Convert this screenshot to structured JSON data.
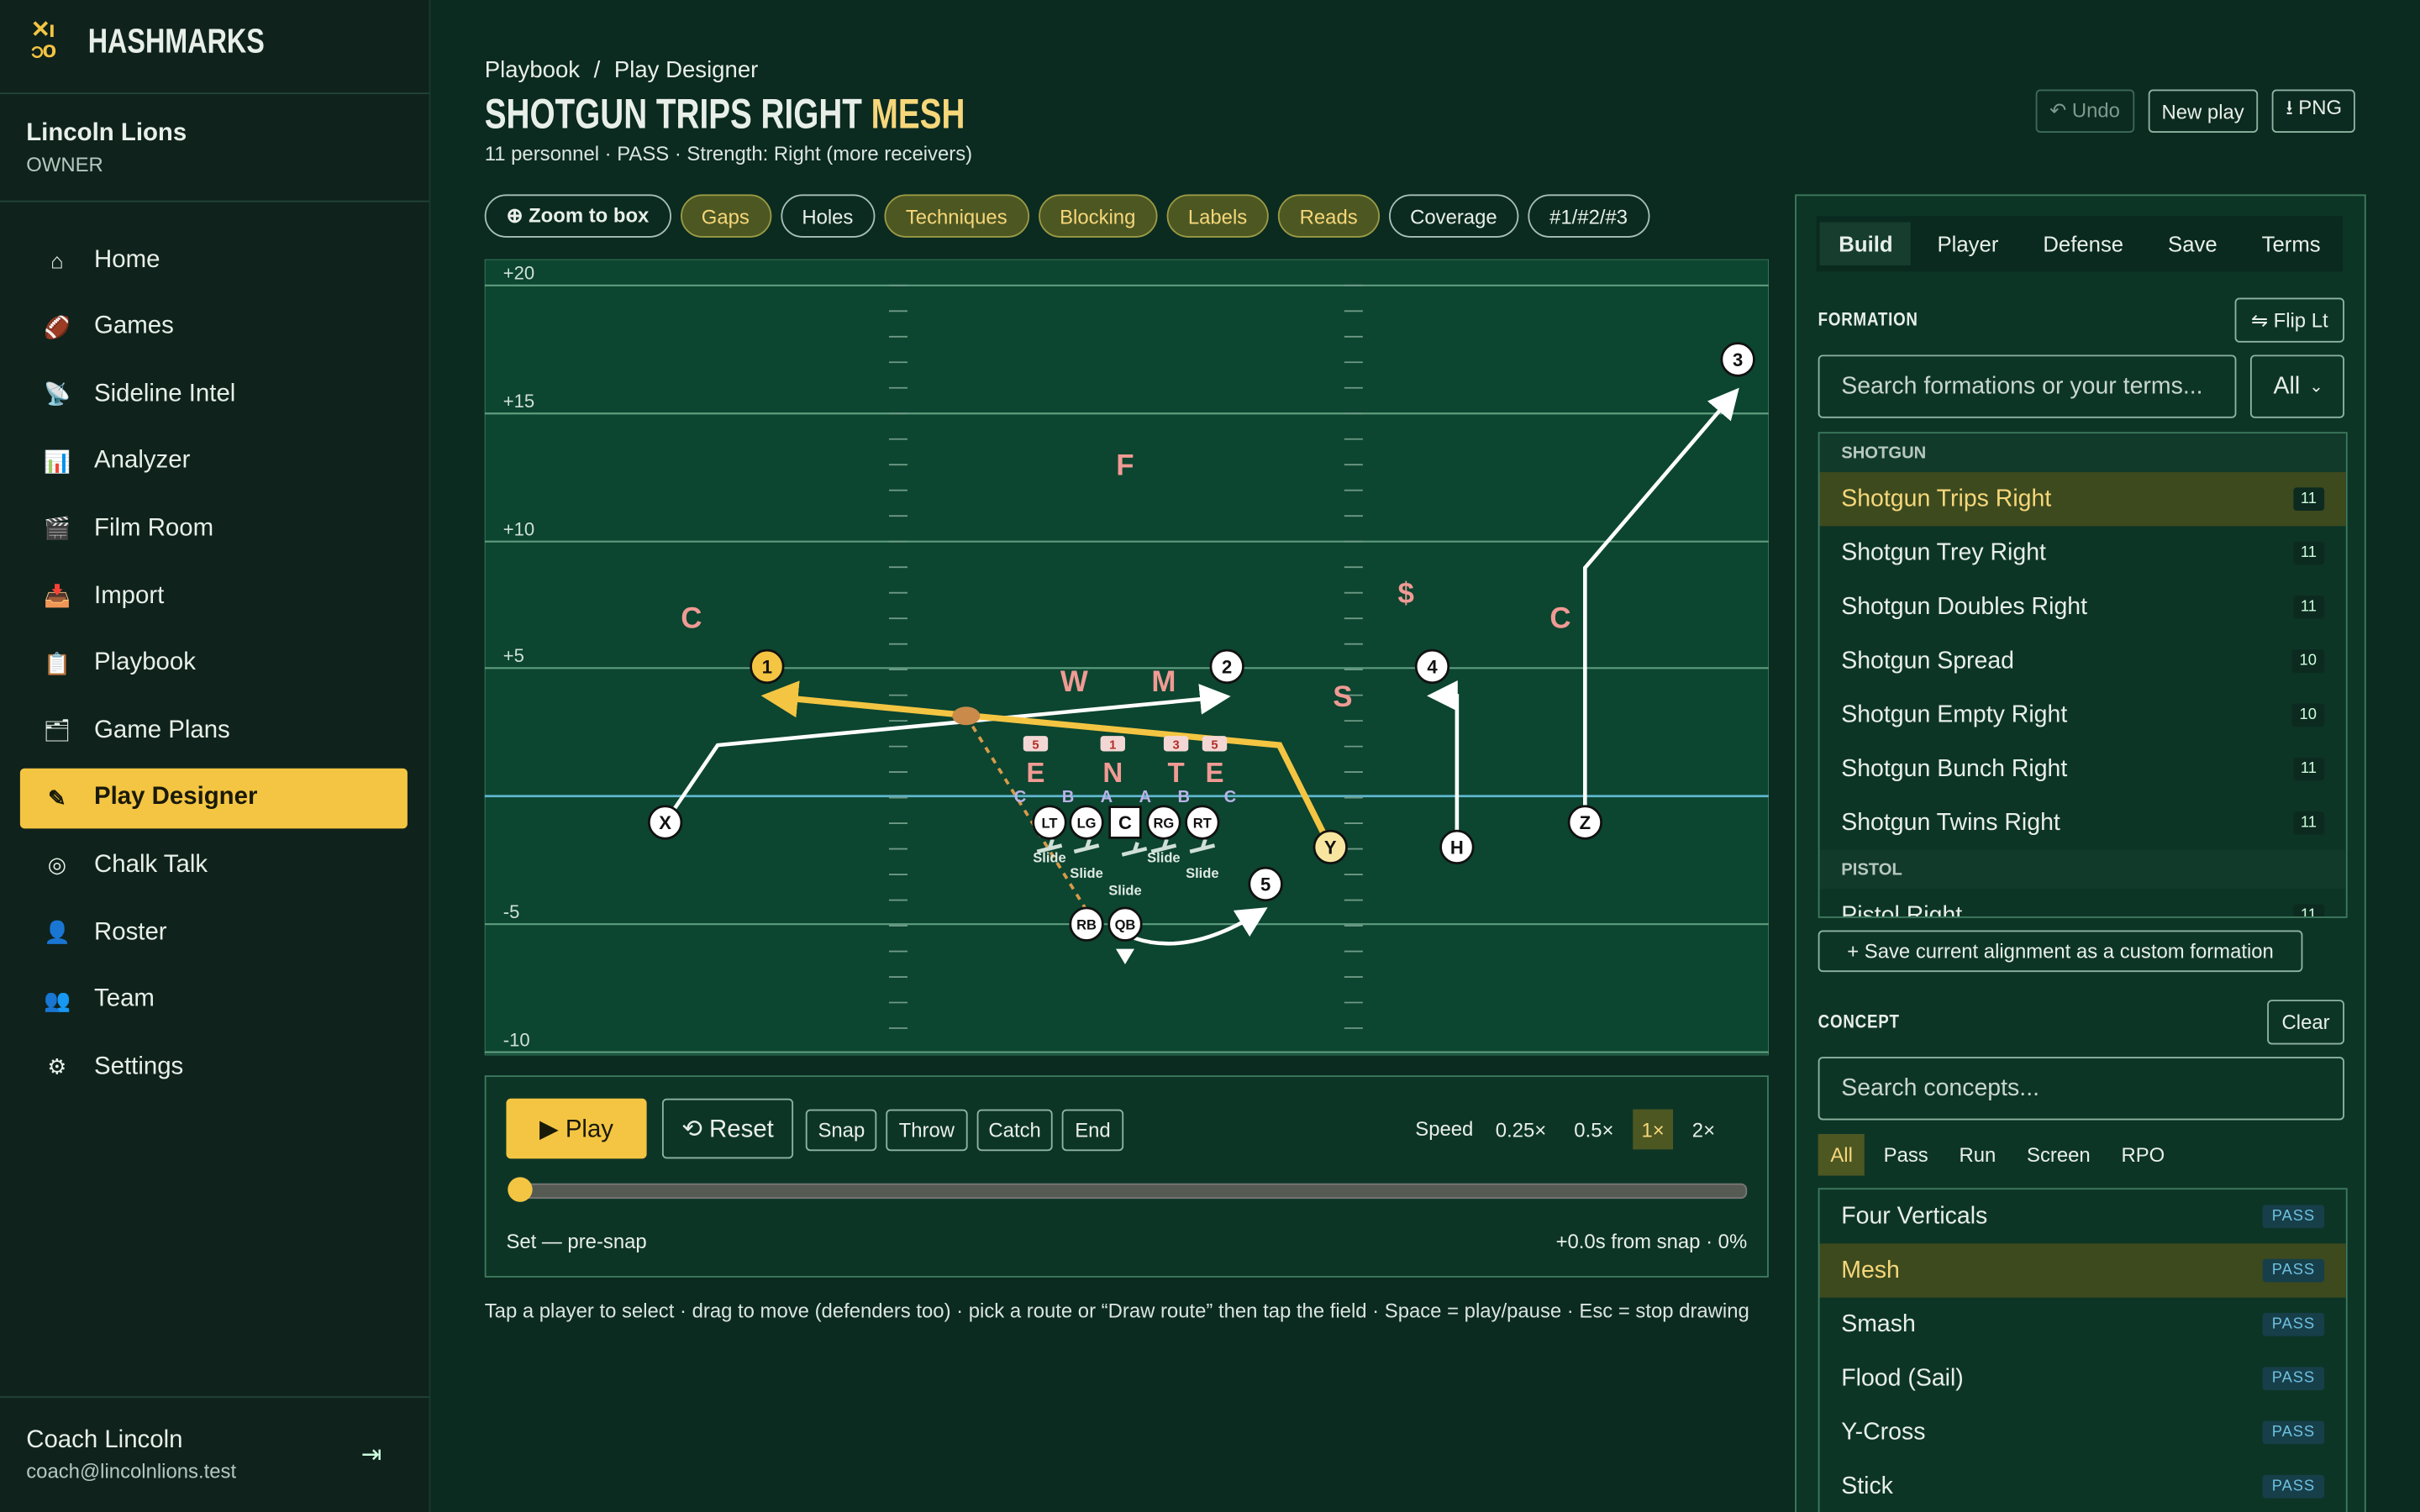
{
  "brand": "HASHMARKS",
  "team": {
    "name": "Lincoln Lions",
    "role": "OWNER"
  },
  "nav": [
    {
      "icon": "⌂",
      "label": "Home"
    },
    {
      "icon": "🏈",
      "label": "Games"
    },
    {
      "icon": "📡",
      "label": "Sideline Intel"
    },
    {
      "icon": "📊",
      "label": "Analyzer"
    },
    {
      "icon": "🎬",
      "label": "Film Room"
    },
    {
      "icon": "📥",
      "label": "Import"
    },
    {
      "icon": "📋",
      "label": "Playbook"
    },
    {
      "icon": "🗂",
      "label": "Game Plans"
    },
    {
      "icon": "✎",
      "label": "Play Designer",
      "active": true
    },
    {
      "icon": "◎",
      "label": "Chalk Talk"
    },
    {
      "icon": "👤",
      "label": "Roster"
    },
    {
      "icon": "👥",
      "label": "Team"
    },
    {
      "icon": "⚙",
      "label": "Settings"
    }
  ],
  "user": {
    "name": "Coach Lincoln",
    "email": "coach@lincolnlions.test",
    "logout": "⇥"
  },
  "breadcrumb": [
    "Playbook",
    "/",
    "Play Designer"
  ],
  "play": {
    "title": "SHOTGUN TRIPS RIGHT",
    "highlight": "MESH",
    "meta": "11 personnel · PASS · Strength: Right (more receivers)"
  },
  "actions": [
    {
      "label": "↶ Undo",
      "disabled": true
    },
    {
      "label": "New play"
    },
    {
      "label": "⭳ PNG"
    }
  ],
  "toggles": [
    {
      "label": "⊕ Zoom to box",
      "on": false
    },
    {
      "label": "Gaps",
      "on": true
    },
    {
      "label": "Holes",
      "on": false
    },
    {
      "label": "Techniques",
      "on": true
    },
    {
      "label": "Blocking",
      "on": true
    },
    {
      "label": "Labels",
      "on": true
    },
    {
      "label": "Reads",
      "on": true
    },
    {
      "label": "Coverage",
      "on": false
    },
    {
      "label": "#1/#2/#3",
      "on": false
    }
  ],
  "field": {
    "yard_labels": [
      "+20",
      "+15",
      "+10",
      "+5",
      "-5",
      "-10"
    ],
    "offense": [
      "X",
      "1",
      "2",
      "3",
      "4",
      "5",
      "Y",
      "H",
      "Z",
      "LT",
      "LG",
      "C",
      "RG",
      "RT",
      "RB",
      "QB"
    ],
    "defense": [
      "C",
      "F",
      "W",
      "M",
      "S",
      "$",
      "C",
      "E",
      "N",
      "T",
      "E"
    ],
    "techniques": [
      "5",
      "1",
      "3",
      "5"
    ],
    "gaps": [
      "C",
      "B",
      "A",
      "A",
      "B",
      "C"
    ],
    "blocks": [
      "Slide",
      "Slide",
      "Slide",
      "Slide",
      "Slide"
    ]
  },
  "controls": {
    "play": "▶ Play",
    "reset": "⟲ Reset",
    "events": [
      "Snap",
      "Throw",
      "Catch",
      "End"
    ],
    "speed_label": "Speed",
    "speeds": [
      {
        "label": "0.25×"
      },
      {
        "label": "0.5×"
      },
      {
        "label": "1×",
        "active": true
      },
      {
        "label": "2×"
      }
    ],
    "status": "Set — pre-snap",
    "time": "+0.0s from snap · 0%"
  },
  "hint": "Tap a player to select · drag to move (defenders too) · pick a route or “Draw route” then tap the field · Space = play/pause · Esc = stop drawing",
  "panel": {
    "tabs": [
      {
        "label": "Build",
        "active": true
      },
      {
        "label": "Player"
      },
      {
        "label": "Defense"
      },
      {
        "label": "Save"
      },
      {
        "label": "Terms"
      }
    ],
    "formation": {
      "heading": "FORMATION",
      "flip": "⇋ Flip Lt",
      "search": "Search formations or your terms...",
      "filter": "All",
      "groups": [
        {
          "name": "SHOTGUN",
          "items": [
            {
              "name": "Shotgun Trips Right",
              "count": 11,
              "selected": true
            },
            {
              "name": "Shotgun Trey Right",
              "count": 11
            },
            {
              "name": "Shotgun Doubles Right",
              "count": 11
            },
            {
              "name": "Shotgun Spread",
              "count": 10
            },
            {
              "name": "Shotgun Empty Right",
              "count": 10
            },
            {
              "name": "Shotgun Bunch Right",
              "count": 11
            },
            {
              "name": "Shotgun Twins Right",
              "count": 11
            }
          ]
        },
        {
          "name": "PISTOL",
          "items": [
            {
              "name": "Pistol Right",
              "count": 11
            }
          ]
        }
      ],
      "save": "+ Save current alignment as a custom formation"
    },
    "concept": {
      "heading": "CONCEPT",
      "clear": "Clear",
      "search": "Search concepts...",
      "filters": [
        {
          "label": "All",
          "active": true
        },
        {
          "label": "Pass"
        },
        {
          "label": "Run"
        },
        {
          "label": "Screen"
        },
        {
          "label": "RPO"
        }
      ],
      "items": [
        {
          "name": "Four Verticals",
          "tag": "PASS"
        },
        {
          "name": "Mesh",
          "tag": "PASS",
          "selected": true
        },
        {
          "name": "Smash",
          "tag": "PASS"
        },
        {
          "name": "Flood (Sail)",
          "tag": "PASS"
        },
        {
          "name": "Y-Cross",
          "tag": "PASS"
        },
        {
          "name": "Stick",
          "tag": "PASS"
        }
      ]
    }
  }
}
